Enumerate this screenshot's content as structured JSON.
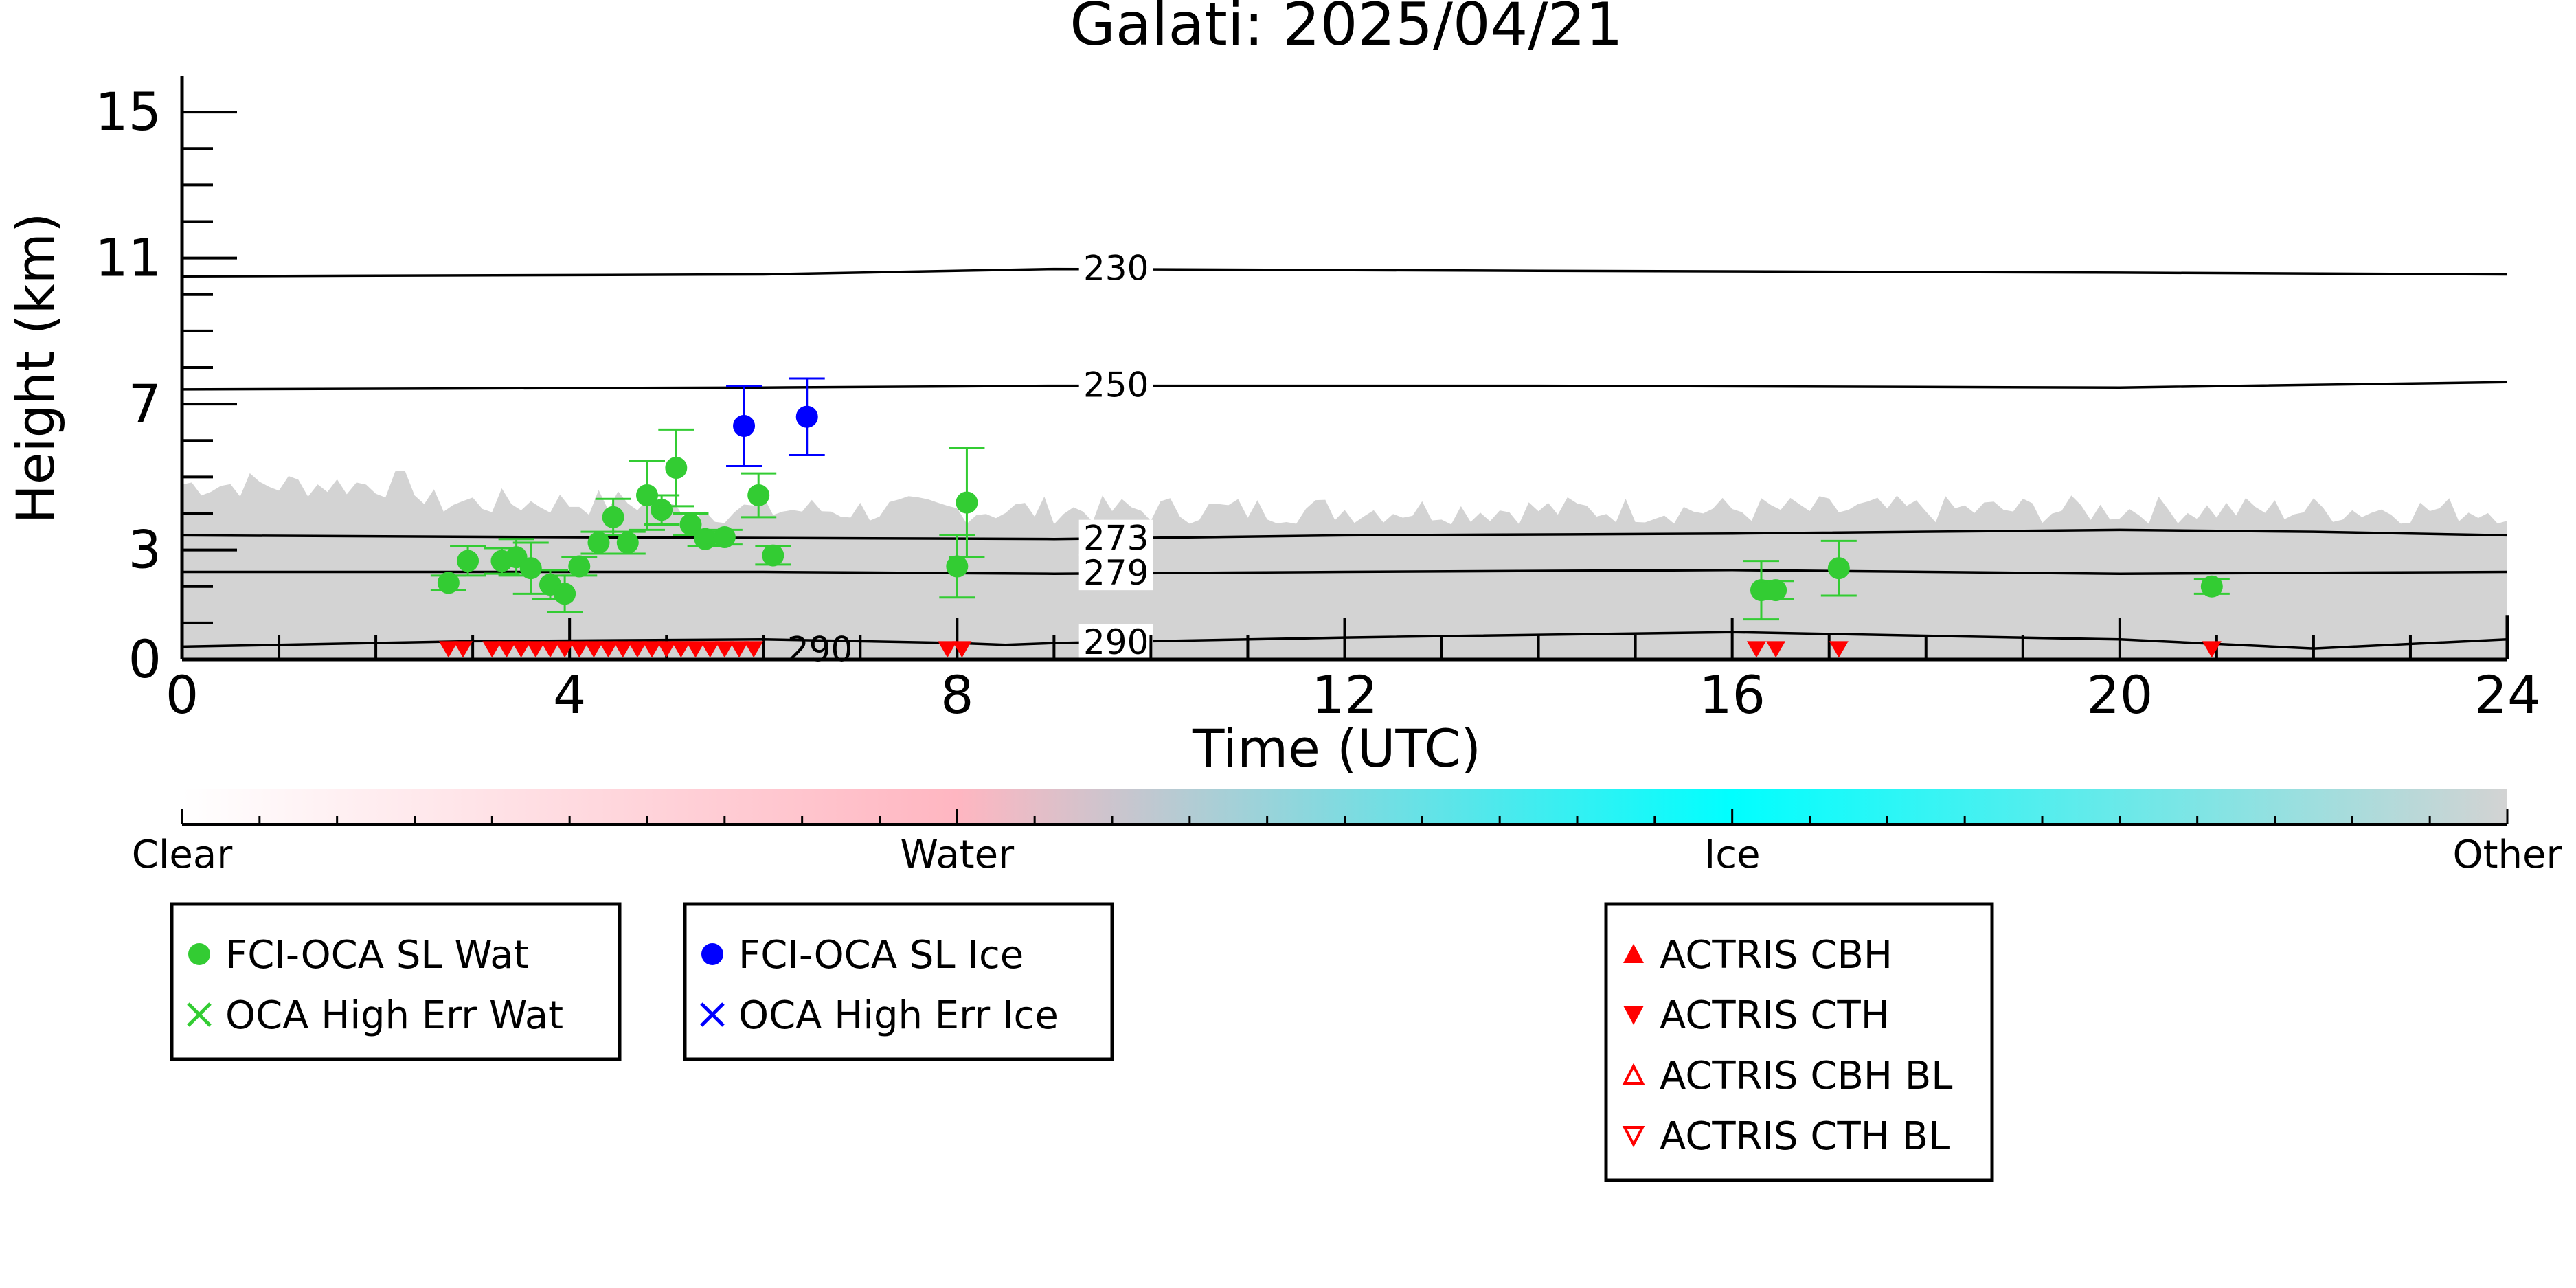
{
  "chart_data": {
    "type": "scatter",
    "title": "Galati: 2025/04/21",
    "xlabel": "Time (UTC)",
    "ylabel": "Height (km)",
    "xlim": [
      0,
      24
    ],
    "ylim": [
      0,
      16
    ],
    "x_ticks": [
      "0",
      "4",
      "8",
      "12",
      "16",
      "20",
      "24"
    ],
    "y_ticks": [
      "0",
      "3",
      "7",
      "11",
      "15"
    ],
    "grid": false,
    "background_cloud_mask": {
      "category": "Other",
      "color": "#d3d3d3",
      "top_km_min": 3.5,
      "top_km_max": 5.2
    },
    "temperature_contours": [
      {
        "label": "230",
        "x": [
          0,
          6,
          9,
          14,
          20,
          24
        ],
        "y": [
          10.5,
          10.55,
          10.7,
          10.65,
          10.6,
          10.55
        ]
      },
      {
        "label": "250",
        "x": [
          0,
          6,
          9,
          14,
          20,
          24
        ],
        "y": [
          7.4,
          7.45,
          7.5,
          7.5,
          7.45,
          7.6
        ]
      },
      {
        "label": "273",
        "x": [
          0,
          4,
          9,
          12,
          16,
          20,
          22,
          24
        ],
        "y": [
          3.4,
          3.35,
          3.3,
          3.4,
          3.45,
          3.55,
          3.5,
          3.4
        ]
      },
      {
        "label": "279",
        "x": [
          0,
          6,
          9,
          12,
          16,
          20,
          24
        ],
        "y": [
          2.4,
          2.4,
          2.35,
          2.4,
          2.45,
          2.35,
          2.4
        ]
      },
      {
        "label": "290",
        "x": [
          0,
          3,
          6,
          8,
          8.5,
          9,
          12,
          16,
          20,
          22,
          24
        ],
        "y": [
          0.35,
          0.5,
          0.55,
          0.45,
          0.4,
          0.45,
          0.6,
          0.75,
          0.55,
          0.3,
          0.55
        ]
      }
    ],
    "contour_extra_labels": [
      {
        "label": "290",
        "x": 6.3,
        "y": 0.25
      }
    ],
    "series": [
      {
        "name": "FCI-OCA SL Wat",
        "color": "#33cc33",
        "marker": "circle",
        "points": [
          {
            "x": 2.75,
            "y": 2.1,
            "err": 0.2
          },
          {
            "x": 2.95,
            "y": 2.7,
            "err": 0.4
          },
          {
            "x": 3.3,
            "y": 2.7,
            "err": 0.35
          },
          {
            "x": 3.45,
            "y": 2.8,
            "err": 0.5
          },
          {
            "x": 3.6,
            "y": 2.5,
            "err": 0.7
          },
          {
            "x": 3.8,
            "y": 2.05,
            "err": 0.4
          },
          {
            "x": 3.95,
            "y": 1.8,
            "err": 0.5
          },
          {
            "x": 4.1,
            "y": 2.55,
            "err": 0.25
          },
          {
            "x": 4.3,
            "y": 3.2,
            "err": 0.3
          },
          {
            "x": 4.45,
            "y": 3.9,
            "err": 0.5
          },
          {
            "x": 4.6,
            "y": 3.2,
            "err": 0.3
          },
          {
            "x": 4.8,
            "y": 4.5,
            "err": 0.95
          },
          {
            "x": 4.95,
            "y": 4.1,
            "err": 0.4
          },
          {
            "x": 5.1,
            "y": 5.25,
            "err": 1.05
          },
          {
            "x": 5.25,
            "y": 3.7,
            "err": 0.3
          },
          {
            "x": 5.4,
            "y": 3.3,
            "err": 0.2
          },
          {
            "x": 5.6,
            "y": 3.35,
            "err": 0.2
          },
          {
            "x": 5.95,
            "y": 4.5,
            "err": 0.6
          },
          {
            "x": 6.1,
            "y": 2.85,
            "err": 0.25
          },
          {
            "x": 8.0,
            "y": 2.55,
            "err": 0.85
          },
          {
            "x": 8.1,
            "y": 4.3,
            "err": 1.5
          },
          {
            "x": 16.3,
            "y": 1.9,
            "err": 0.8
          },
          {
            "x": 16.45,
            "y": 1.9,
            "err": 0.25
          },
          {
            "x": 17.1,
            "y": 2.5,
            "err": 0.75
          },
          {
            "x": 20.95,
            "y": 2.0,
            "err": 0.2
          }
        ]
      },
      {
        "name": "FCI-OCA SL Ice",
        "color": "#0000ff",
        "marker": "circle",
        "points": [
          {
            "x": 5.8,
            "y": 6.4,
            "err": 1.1
          },
          {
            "x": 6.45,
            "y": 6.65,
            "err": 1.05
          }
        ]
      },
      {
        "name": "ACTRIS CTH",
        "color": "#ff0000",
        "marker": "triangle-down",
        "points": [
          {
            "x": 2.75,
            "y": 0.05
          },
          {
            "x": 2.9,
            "y": 0.05
          },
          {
            "x": 3.2,
            "y": 0.05
          },
          {
            "x": 3.35,
            "y": 0.05
          },
          {
            "x": 3.5,
            "y": 0.05
          },
          {
            "x": 3.65,
            "y": 0.05
          },
          {
            "x": 3.8,
            "y": 0.05
          },
          {
            "x": 3.95,
            "y": 0.05
          },
          {
            "x": 4.1,
            "y": 0.05
          },
          {
            "x": 4.25,
            "y": 0.05
          },
          {
            "x": 4.4,
            "y": 0.05
          },
          {
            "x": 4.55,
            "y": 0.05
          },
          {
            "x": 4.7,
            "y": 0.05
          },
          {
            "x": 4.85,
            "y": 0.05
          },
          {
            "x": 5.0,
            "y": 0.05
          },
          {
            "x": 5.15,
            "y": 0.05
          },
          {
            "x": 5.3,
            "y": 0.05
          },
          {
            "x": 5.45,
            "y": 0.05
          },
          {
            "x": 5.6,
            "y": 0.05
          },
          {
            "x": 5.75,
            "y": 0.05
          },
          {
            "x": 5.9,
            "y": 0.05
          },
          {
            "x": 7.9,
            "y": 0.05
          },
          {
            "x": 8.05,
            "y": 0.05
          },
          {
            "x": 16.25,
            "y": 0.05
          },
          {
            "x": 16.45,
            "y": 0.05
          },
          {
            "x": 17.1,
            "y": 0.05
          },
          {
            "x": 20.95,
            "y": 0.05
          }
        ]
      }
    ],
    "colorbar": {
      "labels": [
        "Clear",
        "Water",
        "Ice",
        "Other"
      ],
      "colors": [
        "#ffffff",
        "#ffb6c1",
        "#00ffff",
        "#d3d3d3"
      ]
    },
    "legends": [
      {
        "entries": [
          {
            "label": "FCI-OCA SL Wat",
            "color": "#33cc33",
            "marker": "circle"
          },
          {
            "label": "OCA High Err Wat",
            "color": "#33cc33",
            "marker": "x"
          }
        ]
      },
      {
        "entries": [
          {
            "label": "FCI-OCA SL Ice",
            "color": "#0000ff",
            "marker": "circle"
          },
          {
            "label": "OCA High Err Ice",
            "color": "#0000ff",
            "marker": "x"
          }
        ]
      },
      {
        "entries": [
          {
            "label": "ACTRIS CBH",
            "color": "#ff0000",
            "marker": "triangle-up"
          },
          {
            "label": "ACTRIS CTH",
            "color": "#ff0000",
            "marker": "triangle-down"
          },
          {
            "label": "ACTRIS CBH BL",
            "color": "#ff0000",
            "marker": "triangle-up-open"
          },
          {
            "label": "ACTRIS CTH BL",
            "color": "#ff0000",
            "marker": "triangle-down-open"
          }
        ]
      }
    ]
  }
}
